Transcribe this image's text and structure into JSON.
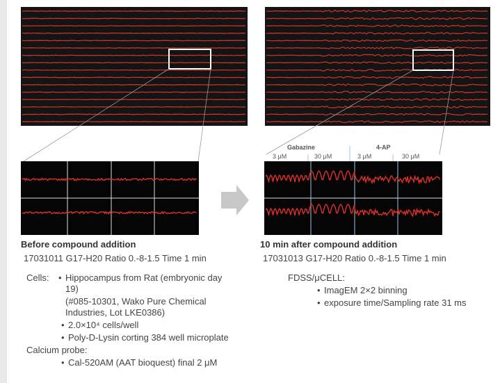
{
  "panels": [
    {
      "caption": "Before compound addition",
      "info": "17031011  G17-H20  Ratio 0.-8-1.5  Time 1 min"
    },
    {
      "caption": "10 min after compound addition",
      "info": "17031013  G17-H20  Ratio 0.-8-1.5  Time 1 min"
    }
  ],
  "zoom_labels": {
    "groups": [
      "Gabazine",
      "4-AP"
    ],
    "doses": [
      "3 μM",
      "30 μM",
      "3 μM",
      "30 μM"
    ]
  },
  "conditions": {
    "cells_label": "Cells:",
    "cells": [
      {
        "text": "Hippocampus from Rat (embryonic day 19)",
        "note": "(#085-10301, Wako Pure Chemical Industries, Lot LKE0386)"
      },
      {
        "text": "2.0×10⁴ cells/well"
      },
      {
        "text": "Poly-D-Lysin corting 384 well microplate"
      }
    ],
    "probe_label": "Calcium probe:",
    "probe": [
      "Cal-520AM (AAT bioquest) final 2 μM"
    ],
    "fdss_label": "FDSS/μCELL:",
    "fdss": [
      "ImagEM 2×2 binning",
      "exposure time/Sampling rate 31 ms"
    ]
  }
}
